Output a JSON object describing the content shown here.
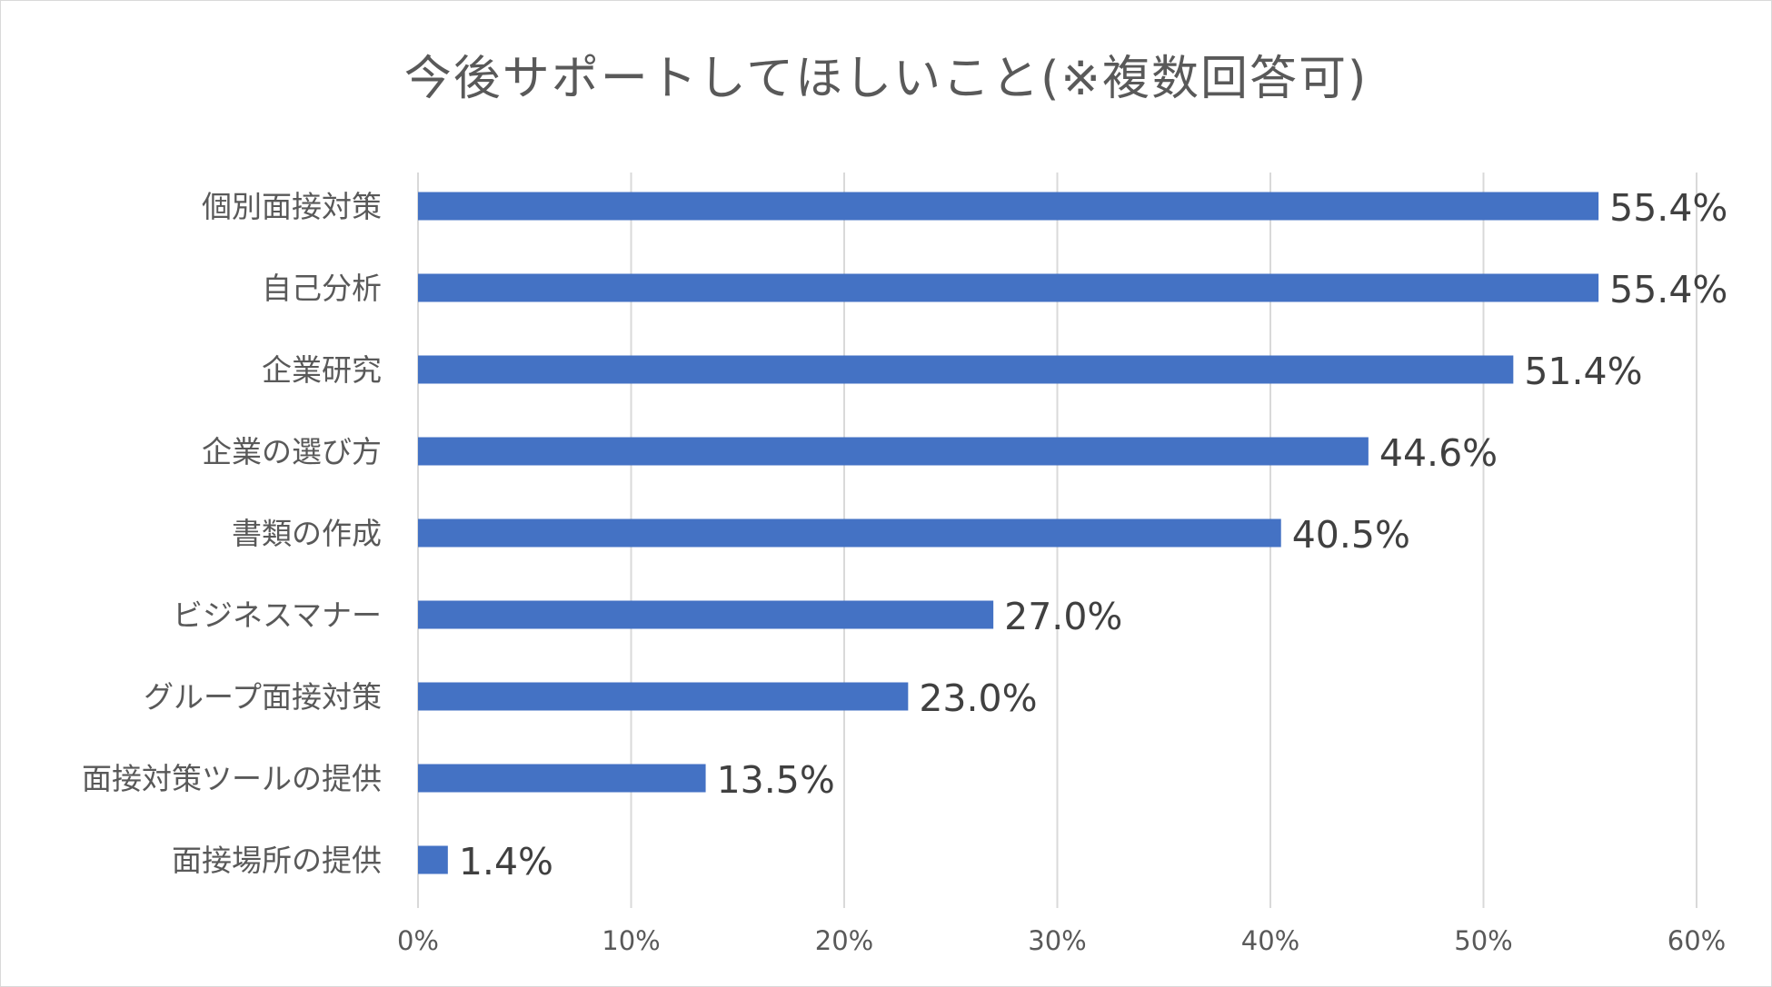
{
  "chart_data": {
    "type": "bar",
    "orientation": "horizontal",
    "title": "今後サポートしてほしいこと(※複数回答可)",
    "categories": [
      "個別面接対策",
      "自己分析",
      "企業研究",
      "企業の選び方",
      "書類の作成",
      "ビジネスマナー",
      "グループ面接対策",
      "面接対策ツールの提供",
      "面接場所の提供"
    ],
    "values": [
      55.4,
      55.4,
      51.4,
      44.6,
      40.5,
      27.0,
      23.0,
      13.5,
      1.4
    ],
    "data_labels": [
      "55.4%",
      "55.4%",
      "51.4%",
      "44.6%",
      "40.5%",
      "27.0%",
      "23.0%",
      "13.5%",
      "1.4%"
    ],
    "x_ticks": [
      "0%",
      "10%",
      "20%",
      "30%",
      "40%",
      "50%",
      "60%"
    ],
    "xlim": [
      0,
      60
    ],
    "grid": "vertical",
    "legend": "none",
    "bar_color": "#4472c4"
  }
}
